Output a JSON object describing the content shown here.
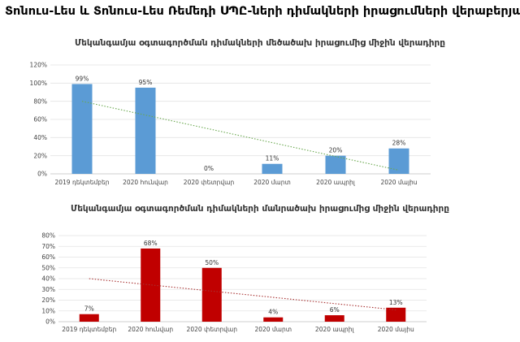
{
  "page": {
    "title": "Տոնուս-Լես և Տոնուս-Լես Ռեմեդի ՍՊԸ-ների դիմակների իրացումների վերաբերյալ"
  },
  "chart_data": [
    {
      "type": "bar",
      "title": "Մեկանգամյա օգտագործման դիմակների մեծածախ իրացումից միջին վերադիրը",
      "categories": [
        "2019 դեկտեմբեր",
        "2020 հունվար",
        "2020 փետրվար",
        "2020 մարտ",
        "2020 ապրիլ",
        "2020 մայիս"
      ],
      "values": [
        99,
        95,
        0,
        11,
        20,
        28
      ],
      "data_labels": [
        "99%",
        "95%",
        "0%",
        "11%",
        "20%",
        "28%"
      ],
      "yticks": [
        "0%",
        "20%",
        "40%",
        "60%",
        "80%",
        "100%",
        "120%"
      ],
      "ylim": [
        0,
        120
      ],
      "bar_color": "#5b9bd5",
      "trendline": {
        "color": "#6aa84f",
        "start": 80,
        "end": 4
      },
      "grid": true
    },
    {
      "type": "bar",
      "title": "Մեկանգամյա օգտագործման դիմակների մանրածախ իրացումից միջին վերադիրը",
      "categories": [
        "2019 դեկտեմբեր",
        "2020 հունվար",
        "2020 փետրվար",
        "2020 մարտ",
        "2020 ապրիլ",
        "2020 մայիս"
      ],
      "values": [
        7,
        68,
        50,
        4,
        6,
        13
      ],
      "data_labels": [
        "7%",
        "68%",
        "50%",
        "4%",
        "6%",
        "13%"
      ],
      "yticks": [
        "0%",
        "10%",
        "20%",
        "30%",
        "40%",
        "50%",
        "60%",
        "70%",
        "80%"
      ],
      "ylim": [
        0,
        80
      ],
      "bar_color": "#c00000",
      "trendline": {
        "color": "#a83232",
        "start": 40,
        "end": 11
      },
      "grid": true
    }
  ]
}
